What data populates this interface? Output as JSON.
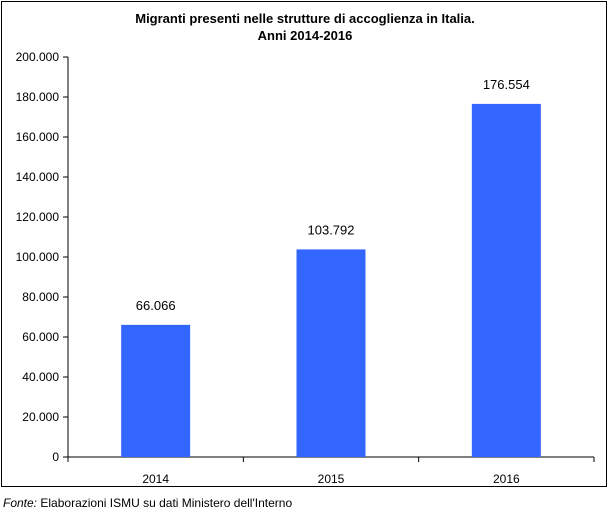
{
  "chart_data": {
    "type": "bar",
    "title_lines": [
      "Migranti presenti nelle strutture di accoglienza in Italia.",
      "Anni 2014-2016"
    ],
    "categories": [
      "2014",
      "2015",
      "2016"
    ],
    "values": [
      66066,
      103792,
      176554
    ],
    "data_labels": [
      "66.066",
      "103.792",
      "176.554"
    ],
    "y_ticks": [
      "0",
      "20.000",
      "40.000",
      "60.000",
      "80.000",
      "100.000",
      "120.000",
      "140.000",
      "160.000",
      "180.000",
      "200.000"
    ],
    "ylim": [
      0,
      200000
    ],
    "bar_color": "#3366ff",
    "grid": false,
    "legend": "none"
  },
  "source": {
    "label": "Fonte:",
    "text": "Elaborazioni ISMU su dati Ministero dell'Interno"
  }
}
